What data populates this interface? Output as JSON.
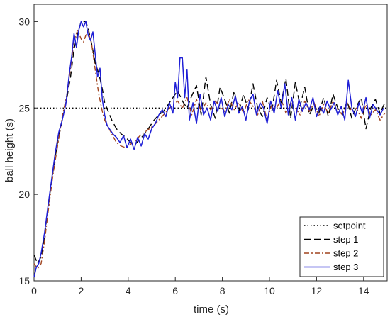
{
  "chart_data": {
    "type": "line",
    "xlabel": "time (s)",
    "ylabel": "ball height (s)",
    "xlim": [
      0,
      15
    ],
    "ylim": [
      15,
      31
    ],
    "xticks": [
      0,
      2,
      4,
      6,
      8,
      10,
      12,
      14
    ],
    "yticks": [
      15,
      20,
      25,
      30
    ],
    "grid": false,
    "legend_position": "bottom-right",
    "series": [
      {
        "name": "setpoint",
        "color": "#000000",
        "dash": "dotted",
        "x": [
          0,
          15
        ],
        "y": [
          25,
          25
        ]
      },
      {
        "name": "step 1",
        "color": "#000000",
        "dash": "dashed",
        "x": [
          0,
          0.15,
          0.3,
          0.45,
          0.6,
          0.8,
          1.0,
          1.2,
          1.4,
          1.55,
          1.7,
          1.85,
          2.0,
          2.1,
          2.2,
          2.3,
          2.45,
          2.6,
          2.75,
          2.9,
          3.0,
          3.15,
          3.3,
          3.5,
          3.7,
          3.9,
          4.1,
          4.3,
          4.5,
          4.7,
          4.9,
          5.1,
          5.3,
          5.5,
          5.7,
          5.9,
          6.1,
          6.3,
          6.5,
          6.7,
          6.9,
          7.1,
          7.3,
          7.5,
          7.7,
          7.9,
          8.1,
          8.3,
          8.5,
          8.7,
          8.9,
          9.1,
          9.3,
          9.5,
          9.7,
          9.9,
          10.1,
          10.3,
          10.5,
          10.7,
          10.9,
          11.1,
          11.3,
          11.5,
          11.7,
          11.9,
          12.1,
          12.3,
          12.5,
          12.7,
          12.9,
          13.1,
          13.3,
          13.5,
          13.7,
          13.9,
          14.1,
          14.3,
          14.5,
          14.7,
          14.9
        ],
        "y": [
          16.5,
          16.0,
          16.4,
          17.6,
          19.3,
          21.3,
          23.0,
          24.3,
          25.6,
          26.8,
          28.4,
          29.3,
          30.0,
          30.0,
          30.0,
          29.6,
          28.7,
          27.6,
          27.0,
          26.1,
          25.3,
          24.8,
          24.3,
          23.8,
          23.5,
          23.3,
          23.0,
          22.9,
          23.2,
          23.5,
          23.9,
          24.3,
          24.6,
          24.8,
          25.2,
          25.6,
          26.0,
          25.4,
          25.0,
          25.7,
          26.3,
          24.6,
          26.8,
          25.2,
          24.4,
          26.2,
          25.5,
          24.7,
          26.0,
          24.8,
          25.8,
          24.9,
          26.4,
          25.0,
          24.5,
          25.6,
          24.8,
          26.6,
          25.3,
          26.7,
          24.4,
          26.5,
          25.1,
          26.2,
          24.6,
          25.2,
          24.7,
          25.6,
          24.5,
          25.8,
          25.0,
          24.6,
          25.4,
          24.4,
          25.1,
          25.6,
          23.8,
          25.0,
          25.5,
          24.7,
          25.3
        ]
      },
      {
        "name": "step 2",
        "color": "#a0441f",
        "dash": "dashdot",
        "x": [
          0,
          0.15,
          0.3,
          0.45,
          0.6,
          0.8,
          1.0,
          1.2,
          1.4,
          1.55,
          1.7,
          1.85,
          2.0,
          2.1,
          2.2,
          2.3,
          2.45,
          2.6,
          2.75,
          2.9,
          3.0,
          3.15,
          3.3,
          3.5,
          3.7,
          3.9,
          4.1,
          4.3,
          4.5,
          4.7,
          4.9,
          5.1,
          5.3,
          5.5,
          5.7,
          5.9,
          6.1,
          6.3,
          6.5,
          6.7,
          6.9,
          7.1,
          7.3,
          7.5,
          7.7,
          7.9,
          8.1,
          8.3,
          8.5,
          8.7,
          8.9,
          9.1,
          9.3,
          9.5,
          9.7,
          9.9,
          10.1,
          10.3,
          10.5,
          10.7,
          10.9,
          11.1,
          11.3,
          11.5,
          11.7,
          11.9,
          12.1,
          12.3,
          12.5,
          12.7,
          12.9,
          13.1,
          13.3,
          13.5,
          13.7,
          13.9,
          14.1,
          14.3,
          14.5,
          14.7,
          14.9
        ],
        "y": [
          16.0,
          15.7,
          16.0,
          17.3,
          19.0,
          21.1,
          22.8,
          24.5,
          25.8,
          27.3,
          28.9,
          29.5,
          29.0,
          28.8,
          29.2,
          29.4,
          28.7,
          27.2,
          25.8,
          24.8,
          24.3,
          23.9,
          23.5,
          23.0,
          22.8,
          22.7,
          22.9,
          23.1,
          23.4,
          23.6,
          23.8,
          24.0,
          24.3,
          24.6,
          24.9,
          25.2,
          25.4,
          25.0,
          25.6,
          24.6,
          25.5,
          24.8,
          25.3,
          24.9,
          25.4,
          25.1,
          24.8,
          25.5,
          24.9,
          25.3,
          24.7,
          25.5,
          25.1,
          24.6,
          25.4,
          24.3,
          25.2,
          25.0,
          25.5,
          24.7,
          25.3,
          25.0,
          24.6,
          25.4,
          24.8,
          25.3,
          24.5,
          25.2,
          24.7,
          25.4,
          24.9,
          24.6,
          25.3,
          24.8,
          25.0,
          24.4,
          25.2,
          24.6,
          24.9,
          24.3,
          24.7
        ]
      },
      {
        "name": "step 3",
        "color": "#1f1fd6",
        "dash": "solid",
        "x": [
          0,
          0.1,
          0.2,
          0.3,
          0.45,
          0.6,
          0.75,
          0.9,
          1.05,
          1.2,
          1.35,
          1.5,
          1.6,
          1.7,
          1.8,
          1.9,
          2.0,
          2.1,
          2.2,
          2.3,
          2.4,
          2.5,
          2.6,
          2.7,
          2.8,
          2.9,
          3.0,
          3.1,
          3.2,
          3.35,
          3.5,
          3.65,
          3.8,
          3.95,
          4.1,
          4.25,
          4.4,
          4.55,
          4.7,
          4.85,
          5.0,
          5.15,
          5.3,
          5.45,
          5.6,
          5.75,
          5.9,
          6.0,
          6.1,
          6.2,
          6.3,
          6.4,
          6.5,
          6.6,
          6.75,
          6.9,
          7.05,
          7.2,
          7.35,
          7.5,
          7.65,
          7.8,
          7.95,
          8.1,
          8.25,
          8.4,
          8.55,
          8.7,
          8.85,
          9.0,
          9.15,
          9.3,
          9.45,
          9.6,
          9.75,
          9.9,
          10.05,
          10.2,
          10.35,
          10.5,
          10.65,
          10.8,
          10.95,
          11.1,
          11.25,
          11.4,
          11.55,
          11.7,
          11.85,
          12.0,
          12.15,
          12.3,
          12.45,
          12.6,
          12.75,
          12.9,
          13.05,
          13.2,
          13.35,
          13.5,
          13.65,
          13.8,
          13.95,
          14.1,
          14.25,
          14.4,
          14.55,
          14.7,
          14.85
        ],
        "y": [
          15.2,
          15.8,
          16.0,
          16.6,
          17.8,
          19.4,
          20.9,
          22.4,
          23.6,
          24.3,
          25.2,
          27.0,
          28.0,
          29.3,
          28.5,
          29.5,
          30.0,
          29.7,
          30.0,
          29.2,
          28.9,
          29.4,
          28.1,
          26.8,
          27.3,
          25.5,
          24.6,
          24.0,
          23.8,
          23.5,
          23.3,
          23.0,
          23.4,
          22.7,
          23.2,
          22.6,
          23.3,
          22.8,
          23.5,
          23.2,
          23.8,
          24.1,
          24.6,
          24.9,
          24.5,
          25.3,
          24.7,
          26.5,
          25.6,
          27.9,
          27.9,
          25.6,
          27.2,
          24.3,
          25.3,
          24.1,
          25.8,
          24.6,
          25.0,
          24.3,
          25.4,
          24.8,
          25.6,
          24.5,
          25.2,
          24.9,
          25.7,
          24.7,
          25.1,
          24.3,
          25.4,
          25.8,
          24.6,
          25.3,
          25.0,
          24.1,
          25.4,
          24.7,
          26.0,
          25.0,
          26.4,
          24.6,
          25.6,
          24.3,
          25.5,
          24.8,
          25.3,
          24.9,
          25.6,
          24.5,
          25.1,
          24.7,
          25.4,
          24.9,
          25.3,
          24.6,
          25.1,
          24.3,
          26.6,
          25.0,
          24.5,
          25.3,
          24.7,
          25.6,
          24.4,
          25.2,
          24.9,
          24.6,
          25.0
        ]
      }
    ]
  }
}
